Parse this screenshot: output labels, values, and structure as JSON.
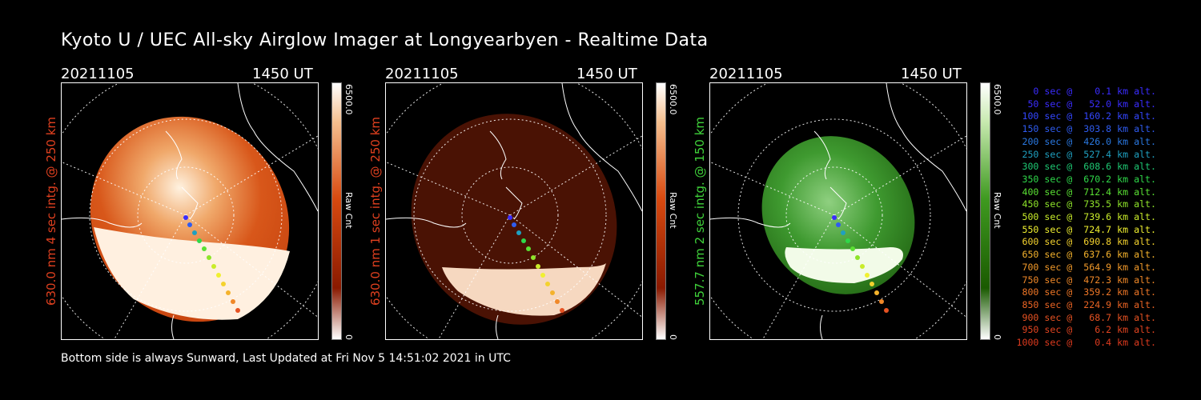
{
  "title": "Kyoto U / UEC All-sky Airglow Imager at Longyearbyen - Realtime Data",
  "footer": "Bottom side is always Sunward, Last Updated at Fri Nov  5 14:51:02 2021 in UTC",
  "panels": [
    {
      "date": "20211105",
      "time": "1450 UT",
      "label": "630.0 nm 4 sec intg. @ 250 km",
      "label_color": "#e0401f",
      "cbar_max": "6500.0",
      "cbar_unit": "Raw Cnt",
      "cbar_min": "0",
      "palette": "red-bright"
    },
    {
      "date": "20211105",
      "time": "1450 UT",
      "label": "630.0 nm 1 sec intg. @ 250 km",
      "label_color": "#e0401f",
      "cbar_max": "6500.0",
      "cbar_unit": "Raw Cnt",
      "cbar_min": "0",
      "palette": "red-dark"
    },
    {
      "date": "20211105",
      "time": "1450 UT",
      "label": "557.7 nm 2 sec intg. @ 150 km",
      "label_color": "#3fd23a",
      "cbar_max": "6500.0",
      "cbar_unit": "Raw Cnt",
      "cbar_min": "0",
      "palette": "green"
    }
  ],
  "legend": [
    {
      "text": "   0 sec @    0.1 km alt.",
      "color": "#3a2cff"
    },
    {
      "text": "  50 sec @   52.0 km alt.",
      "color": "#3a2cff"
    },
    {
      "text": " 100 sec @  160.2 km alt.",
      "color": "#3346ff"
    },
    {
      "text": " 150 sec @  303.8 km alt.",
      "color": "#2f5cf0"
    },
    {
      "text": " 200 sec @  426.0 km alt.",
      "color": "#2a78e0"
    },
    {
      "text": " 250 sec @  527.4 km alt.",
      "color": "#1fa0c0"
    },
    {
      "text": " 300 sec @  608.6 km alt.",
      "color": "#1ec873"
    },
    {
      "text": " 350 sec @  670.2 km alt.",
      "color": "#2fd84a"
    },
    {
      "text": " 400 sec @  712.4 km alt.",
      "color": "#5ae033"
    },
    {
      "text": " 450 sec @  735.5 km alt.",
      "color": "#8fe42a"
    },
    {
      "text": " 500 sec @  739.6 km alt.",
      "color": "#c9ec2a"
    },
    {
      "text": " 550 sec @  724.7 km alt.",
      "color": "#f0f030"
    },
    {
      "text": " 600 sec @  690.8 km alt.",
      "color": "#f4d22e"
    },
    {
      "text": " 650 sec @  637.6 km alt.",
      "color": "#f4b22c"
    },
    {
      "text": " 700 sec @  564.9 km alt.",
      "color": "#f29a2a"
    },
    {
      "text": " 750 sec @  472.3 km alt.",
      "color": "#f08828"
    },
    {
      "text": " 800 sec @  359.2 km alt.",
      "color": "#ee7626"
    },
    {
      "text": " 850 sec @  224.9 km alt.",
      "color": "#ea6424"
    },
    {
      "text": " 900 sec @   68.7 km alt.",
      "color": "#e65222"
    },
    {
      "text": " 950 sec @    6.2 km alt.",
      "color": "#e24420"
    },
    {
      "text": "1000 sec @    0.4 km alt.",
      "color": "#de3a1e"
    }
  ]
}
